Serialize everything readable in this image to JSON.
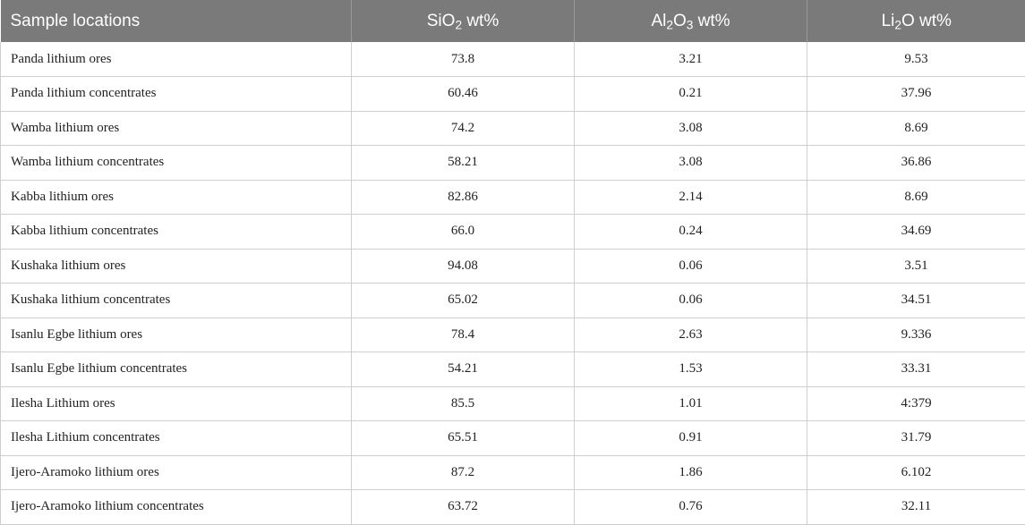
{
  "table": {
    "headers": {
      "location": "Sample locations",
      "sio2": {
        "pre": "SiO",
        "sub1": "2",
        "mid": "",
        "sub2": "",
        "post": " wt%"
      },
      "al2o3": {
        "pre": "Al",
        "sub1": "2",
        "mid": "O",
        "sub2": "3",
        "post": " wt%"
      },
      "li2o": {
        "pre": "Li",
        "sub1": "2",
        "mid": "O",
        "sub2": "",
        "post": " wt%"
      }
    },
    "rows": [
      {
        "location": "Panda lithium ores",
        "sio2": "73.8",
        "al2o3": "3.21",
        "li2o": "9.53"
      },
      {
        "location": "Panda lithium concentrates",
        "sio2": "60.46",
        "al2o3": "0.21",
        "li2o": "37.96"
      },
      {
        "location": "Wamba lithium ores",
        "sio2": "74.2",
        "al2o3": "3.08",
        "li2o": "8.69"
      },
      {
        "location": "Wamba lithium concentrates",
        "sio2": "58.21",
        "al2o3": "3.08",
        "li2o": "36.86"
      },
      {
        "location": "Kabba lithium ores",
        "sio2": "82.86",
        "al2o3": "2.14",
        "li2o": "8.69"
      },
      {
        "location": "Kabba lithium concentrates",
        "sio2": "66.0",
        "al2o3": "0.24",
        "li2o": "34.69"
      },
      {
        "location": "Kushaka lithium ores",
        "sio2": "94.08",
        "al2o3": "0.06",
        "li2o": "3.51"
      },
      {
        "location": "Kushaka lithium concentrates",
        "sio2": "65.02",
        "al2o3": "0.06",
        "li2o": "34.51"
      },
      {
        "location": "Isanlu Egbe lithium ores",
        "sio2": "78.4",
        "al2o3": "2.63",
        "li2o": "9.336"
      },
      {
        "location": "Isanlu Egbe lithium concentrates",
        "sio2": "54.21",
        "al2o3": "1.53",
        "li2o": "33.31"
      },
      {
        "location": "Ilesha Lithium ores",
        "sio2": "85.5",
        "al2o3": "1.01",
        "li2o": "4:379"
      },
      {
        "location": "Ilesha Lithium concentrates",
        "sio2": "65.51",
        "al2o3": "0.91",
        "li2o": "31.79"
      },
      {
        "location": "Ijero-Aramoko lithium ores",
        "sio2": "87.2",
        "al2o3": "1.86",
        "li2o": "6.102"
      },
      {
        "location": "Ijero-Aramoko lithium concentrates",
        "sio2": "63.72",
        "al2o3": "0.76",
        "li2o": "32.11"
      }
    ]
  }
}
